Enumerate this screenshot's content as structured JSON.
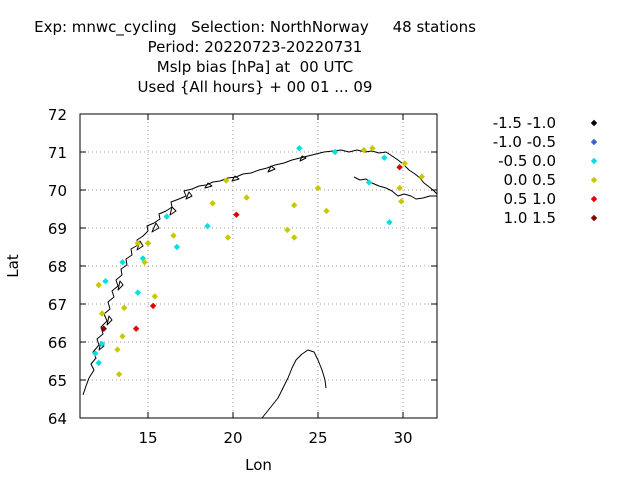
{
  "header": {
    "line1": "Exp: mnwc_cycling   Selection: NorthNorway     48 stations",
    "line2": "Period: 20220723-20220731",
    "line3": "Mslp bias [hPa] at  00 UTC",
    "line4": "Used {All hours} + 00 01 ... 09"
  },
  "chart_data": {
    "type": "scatter",
    "title": "Exp: mnwc_cycling   Selection: NorthNorway     48 stations",
    "xlabel": "Lon",
    "ylabel": "Lat",
    "xlim": [
      11,
      32
    ],
    "ylim": [
      64,
      72
    ],
    "xticks": [
      15,
      20,
      25,
      30
    ],
    "yticks": [
      64,
      65,
      66,
      67,
      68,
      69,
      70,
      71,
      72
    ],
    "grid": true,
    "legend_position": "right",
    "series": [
      {
        "name": "-1.5 -1.0",
        "color": "#000000",
        "points": []
      },
      {
        "name": "-1.0 -0.5",
        "color": "#3366cc",
        "points": []
      },
      {
        "name": "-0.5 0.0",
        "color": "#00e0e0",
        "points": [
          [
            23.9,
            71.1
          ],
          [
            26.0,
            71.0
          ],
          [
            28.9,
            70.85
          ],
          [
            28.0,
            70.2
          ],
          [
            29.2,
            69.15
          ],
          [
            16.1,
            69.3
          ],
          [
            18.5,
            69.05
          ],
          [
            16.7,
            68.5
          ],
          [
            14.7,
            68.2
          ],
          [
            13.5,
            68.1
          ],
          [
            12.5,
            67.6
          ],
          [
            14.4,
            67.3
          ],
          [
            11.9,
            65.7
          ],
          [
            12.3,
            65.95
          ],
          [
            12.1,
            65.45
          ]
        ]
      },
      {
        "name": "0.0 0.5",
        "color": "#c8c800",
        "points": [
          [
            27.7,
            71.05
          ],
          [
            28.2,
            71.1
          ],
          [
            30.1,
            70.7
          ],
          [
            31.1,
            70.35
          ],
          [
            29.8,
            70.05
          ],
          [
            29.9,
            69.7
          ],
          [
            25.0,
            70.05
          ],
          [
            19.6,
            70.25
          ],
          [
            18.8,
            69.65
          ],
          [
            20.8,
            69.8
          ],
          [
            23.6,
            69.6
          ],
          [
            25.5,
            69.45
          ],
          [
            23.2,
            68.95
          ],
          [
            23.6,
            68.75
          ],
          [
            19.7,
            68.75
          ],
          [
            16.5,
            68.8
          ],
          [
            14.4,
            68.6
          ],
          [
            15.0,
            68.6
          ],
          [
            14.8,
            68.1
          ],
          [
            12.1,
            67.5
          ],
          [
            15.4,
            67.2
          ],
          [
            13.6,
            66.9
          ],
          [
            12.3,
            66.75
          ],
          [
            13.5,
            66.15
          ],
          [
            13.2,
            65.8
          ],
          [
            13.3,
            65.15
          ]
        ]
      },
      {
        "name": "0.5 1.0",
        "color": "#e00000",
        "points": [
          [
            29.8,
            70.6
          ],
          [
            20.2,
            69.35
          ],
          [
            14.3,
            66.35
          ],
          [
            15.3,
            66.95
          ]
        ]
      },
      {
        "name": "1.0 1.5",
        "color": "#800000",
        "points": [
          [
            12.4,
            66.35
          ]
        ]
      }
    ]
  }
}
